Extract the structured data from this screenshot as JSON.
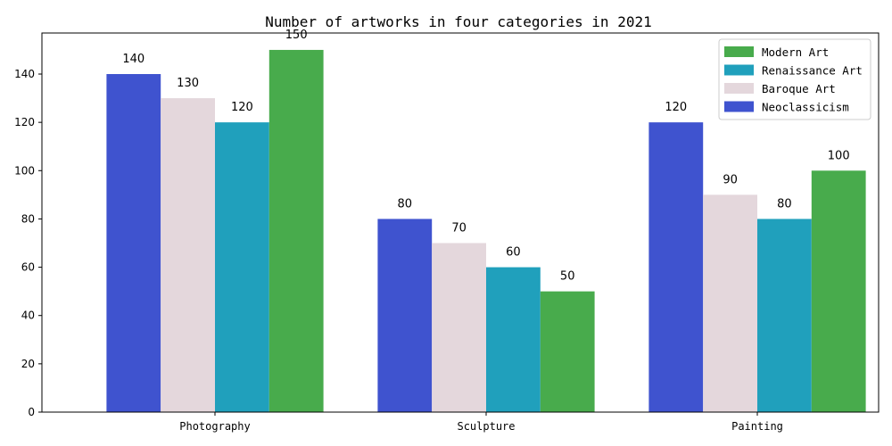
{
  "chart_data": {
    "type": "bar",
    "title": "Number of artworks in four categories in 2021",
    "xlabel": "",
    "ylabel": "",
    "categories": [
      "Photography",
      "Sculpture",
      "Painting"
    ],
    "ylim": [
      0,
      157
    ],
    "yticks": [
      0,
      20,
      40,
      60,
      80,
      100,
      120,
      140
    ],
    "grid": false,
    "legend_position": "top-right",
    "legend_order": [
      "Modern Art",
      "Renaissance Art",
      "Baroque Art",
      "Neoclassicism"
    ],
    "series": [
      {
        "name": "Neoclassicism",
        "color": "#3f53cf",
        "values": [
          140,
          80,
          120
        ]
      },
      {
        "name": "Baroque Art",
        "color": "#e4d7dc",
        "values": [
          130,
          70,
          90
        ]
      },
      {
        "name": "Renaissance Art",
        "color": "#20a0bc",
        "values": [
          120,
          60,
          80
        ]
      },
      {
        "name": "Modern Art",
        "color": "#48ab4c",
        "values": [
          150,
          50,
          100
        ]
      }
    ]
  }
}
